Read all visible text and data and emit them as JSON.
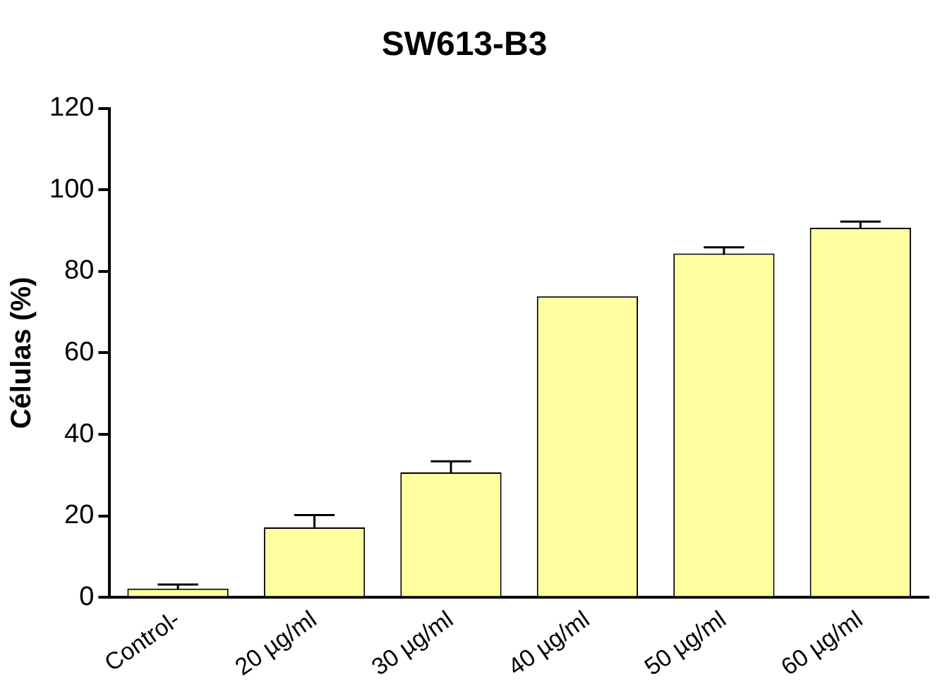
{
  "chart_data": {
    "type": "bar",
    "title": "SW613-B3",
    "ylabel": "Células (%)",
    "categories": [
      "Control-",
      "20 µg/ml",
      "30 µg/ml",
      "40 µg/ml",
      "50 µg/ml",
      "60 µg/ml"
    ],
    "values": [
      2.2,
      17.2,
      30.7,
      73.9,
      84.4,
      90.7
    ],
    "errors": [
      1,
      3,
      2.7,
      null,
      1.5,
      1.5
    ],
    "color": "#ffffa0",
    "ylim": [
      0,
      120
    ],
    "yticks": [
      0,
      20,
      40,
      60,
      80,
      100,
      120
    ],
    "grid": false,
    "legend": false
  }
}
